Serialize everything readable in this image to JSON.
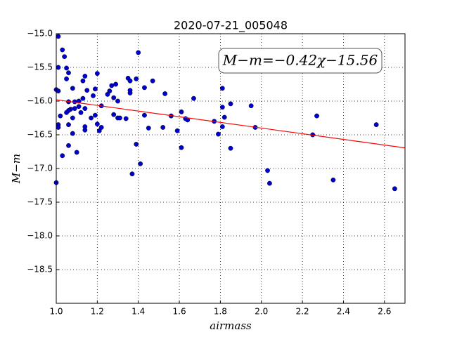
{
  "chart_data": {
    "type": "scatter",
    "title": "2020-07-21_005048",
    "xlabel": "airmass",
    "ylabel": "M−m",
    "annotation": "M−m=−0.42χ−15.56",
    "xlim": [
      1.0,
      2.7
    ],
    "ylim": [
      -19,
      -15
    ],
    "xticks": [
      {
        "value": 1,
        "label": "1.0"
      },
      1.2,
      1.4,
      1.6,
      1.8,
      {
        "value": 2,
        "label": "2.0"
      },
      2.2,
      2.4,
      2.6
    ],
    "yticks": [
      {
        "value": -15,
        "label": "−15.0"
      },
      {
        "value": -15.5,
        "label": "−15.5"
      },
      {
        "value": -16,
        "label": "−16.0"
      },
      {
        "value": -16.5,
        "label": "−16.5"
      },
      {
        "value": -17,
        "label": "−17.0"
      },
      {
        "value": -17.5,
        "label": "−17.5"
      },
      {
        "value": -18,
        "label": "−18.0"
      },
      {
        "value": -18.5,
        "label": "−18.5"
      }
    ],
    "grid": true,
    "points": {
      "color": "#0000cc",
      "x": [
        1.01,
        1.03,
        1.04,
        1.01,
        1.05,
        1.05,
        1.06,
        1.0,
        1.01,
        1.08,
        1.14,
        1.2,
        1.13,
        1.15,
        1.19,
        1.18,
        1.13,
        1.11,
        1.09,
        1.06,
        1.11,
        1.14,
        1.09,
        1.07,
        1.06,
        1.05,
        1.02,
        1.12,
        1.19,
        1.17,
        1.08,
        1.06,
        1.01,
        1.01,
        1.14,
        1.14,
        1.2,
        1.21,
        1.08,
        1.06,
        1.1,
        1.03,
        1.0,
        1.25,
        1.26,
        1.27,
        1.29,
        1.28,
        1.3,
        1.22,
        1.28,
        1.3,
        1.31,
        1.34,
        1.22,
        1.35,
        1.39,
        1.36,
        1.36,
        1.36,
        1.4,
        1.43,
        1.47,
        1.43,
        1.45,
        1.39,
        1.41,
        1.37,
        1.53,
        1.56,
        1.52,
        1.59,
        1.61,
        1.63,
        1.64,
        1.61,
        1.67,
        1.81,
        1.81,
        1.82,
        1.77,
        1.81,
        1.79,
        1.85,
        1.85,
        1.95,
        1.97,
        2.03,
        2.04,
        2.27,
        2.25,
        2.35,
        2.56,
        2.65
      ],
      "values": [
        -15.04,
        -15.24,
        -15.34,
        -15.5,
        -15.51,
        -15.67,
        -15.58,
        -15.83,
        -15.85,
        -15.81,
        -15.63,
        -15.59,
        -15.7,
        -15.84,
        -15.82,
        -15.92,
        -15.96,
        -16.0,
        -16.01,
        -16.01,
        -16.08,
        -16.11,
        -16.11,
        -16.12,
        -16.14,
        -16.17,
        -16.22,
        -16.17,
        -16.21,
        -16.25,
        -16.25,
        -16.35,
        -16.35,
        -16.39,
        -16.38,
        -16.43,
        -16.34,
        -16.44,
        -16.48,
        -16.66,
        -16.76,
        -16.81,
        -17.21,
        -15.9,
        -15.85,
        -15.77,
        -15.75,
        -15.95,
        -16.0,
        -16.07,
        -16.2,
        -16.25,
        -16.25,
        -16.26,
        -16.39,
        -15.66,
        -15.67,
        -15.7,
        -15.84,
        -15.88,
        -15.28,
        -15.8,
        -15.7,
        -16.21,
        -16.4,
        -16.64,
        -16.93,
        -17.08,
        -15.89,
        -16.22,
        -16.39,
        -16.44,
        -16.16,
        -16.26,
        -16.28,
        -16.69,
        -15.96,
        -15.81,
        -16.09,
        -16.24,
        -16.3,
        -16.38,
        -16.49,
        -16.04,
        -16.7,
        -16.07,
        -16.39,
        -17.03,
        -17.22,
        -16.22,
        -16.5,
        -17.17,
        -16.35,
        -17.3
      ]
    },
    "fit": {
      "color": "#ff0000",
      "x": [
        1.0,
        2.7
      ],
      "values": [
        -15.98,
        -16.694
      ]
    }
  }
}
